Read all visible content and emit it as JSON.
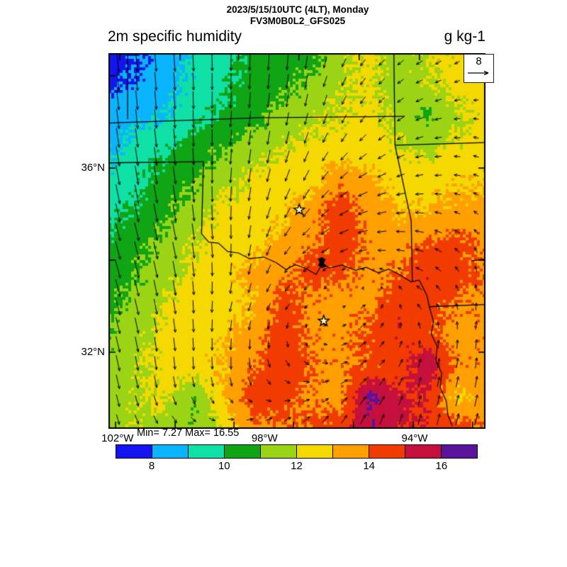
{
  "header": {
    "datetime_line": "2023/5/15/10UTC (4LT), Monday",
    "model_line": "FV3M0B0L2_GFS025",
    "field_title": "2m specific humidity",
    "units": "g kg-1"
  },
  "stats": {
    "min_max_label": "Min= 7.27 Max= 16.55",
    "min": 7.27,
    "max": 16.55
  },
  "reference_vector": {
    "label": "8",
    "value": 8
  },
  "axes": {
    "lat_labels": [
      {
        "text": "36°N",
        "ny": 0.306
      },
      {
        "text": "32°N",
        "ny": 0.796
      }
    ],
    "lon_labels": [
      {
        "text": "102°W",
        "nx": 0.024
      },
      {
        "text": "98°W",
        "nx": 0.414
      },
      {
        "text": "94°W",
        "nx": 0.812
      }
    ],
    "bottom_ticks_nx": [
      0.019,
      0.177,
      0.333,
      0.491,
      0.65,
      0.808,
      0.966
    ],
    "top_ticks_nx": [
      0.03,
      0.19,
      0.345,
      0.505,
      0.665,
      0.825,
      0.98
    ],
    "side_ticks_ny": [
      0.06,
      0.306,
      0.551,
      0.796
    ]
  },
  "colorbar": {
    "levels": [
      7,
      8,
      9,
      10,
      11,
      12,
      13,
      14,
      15,
      16,
      17
    ],
    "tick_labels": [
      "8",
      "10",
      "12",
      "14",
      "16"
    ],
    "colors": [
      "#1414f0",
      "#0ab4ff",
      "#0fe0a5",
      "#0fa514",
      "#9bd414",
      "#f5d800",
      "#ff9f00",
      "#f23b00",
      "#c50f3c",
      "#5a149b"
    ]
  },
  "chart_data": {
    "type": "heatmap",
    "title": "2m specific humidity",
    "units": "g kg-1",
    "time": "2023/5/15/10UTC (4LT), Monday",
    "model": "FV3M0B0L2_GFS025",
    "value_range_shown": [
      7,
      17
    ],
    "min": 7.27,
    "max": 16.55,
    "grid": {
      "note": "specific humidity g/kg on normalized map coords, 13 rows (top to bottom) x 14 cols (west to east)",
      "values": [
        [
          7.6,
          7.8,
          8.5,
          9.2,
          9.6,
          10.3,
          10.6,
          10.6,
          11.6,
          12.2,
          11.6,
          12.0,
          12.3,
          12.2
        ],
        [
          7.7,
          8.2,
          8.6,
          9.3,
          9.8,
          10.4,
          10.7,
          11.2,
          11.9,
          12.2,
          11.5,
          11.9,
          12.4,
          12.3
        ],
        [
          8.4,
          8.7,
          9.0,
          9.6,
          10.2,
          10.6,
          11.3,
          11.8,
          12.1,
          12.3,
          11.7,
          10.9,
          11.9,
          12.4
        ],
        [
          8.8,
          9.4,
          9.9,
          10.5,
          10.9,
          11.5,
          12.0,
          12.3,
          12.4,
          12.4,
          12.0,
          11.6,
          12.2,
          12.5
        ],
        [
          9.2,
          9.8,
          10.4,
          11.0,
          11.6,
          12.2,
          12.5,
          12.6,
          13.6,
          13.2,
          12.6,
          12.5,
          12.8,
          12.9
        ],
        [
          9.6,
          10.2,
          10.8,
          11.5,
          12.3,
          12.5,
          12.7,
          13.6,
          14.6,
          13.6,
          12.9,
          13.0,
          13.3,
          13.4
        ],
        [
          10.2,
          10.7,
          11.3,
          12.0,
          12.5,
          12.6,
          13.4,
          13.8,
          14.6,
          13.8,
          13.5,
          14.0,
          14.3,
          13.8
        ],
        [
          10.4,
          10.9,
          11.6,
          12.3,
          12.6,
          13.3,
          13.7,
          14.3,
          14.2,
          13.7,
          13.9,
          14.8,
          14.4,
          13.9
        ],
        [
          10.8,
          11.4,
          12.1,
          12.5,
          12.6,
          13.0,
          14.4,
          13.8,
          13.6,
          13.7,
          14.6,
          14.4,
          13.9,
          13.7
        ],
        [
          11.0,
          11.7,
          12.3,
          12.5,
          12.8,
          13.5,
          14.6,
          13.8,
          13.7,
          14.2,
          14.9,
          14.3,
          13.6,
          13.8
        ],
        [
          11.3,
          11.9,
          12.4,
          12.6,
          13.1,
          13.9,
          14.7,
          14.0,
          13.7,
          14.2,
          14.4,
          15.9,
          13.8,
          13.7
        ],
        [
          11.5,
          11.9,
          12.2,
          10.9,
          13.0,
          14.6,
          14.4,
          13.8,
          13.6,
          16.1,
          15.3,
          14.8,
          12.7,
          13.6
        ],
        [
          11.6,
          11.9,
          11.5,
          11.2,
          12.2,
          13.6,
          14.0,
          14.2,
          14.4,
          15.9,
          15.2,
          14.9,
          14.6,
          13.9
        ]
      ]
    },
    "wind": {
      "note": "10m wind vectors, 7x7 coarse grid, u east+ / v north+, reference arrow = 8",
      "u": [
        [
          0.8,
          0.5,
          0,
          -0.5,
          -2,
          -2.5,
          -1.5
        ],
        [
          1,
          0.5,
          -0.5,
          -1,
          -2,
          -3,
          -2
        ],
        [
          1.5,
          1,
          -0.5,
          -2,
          -3.5,
          -3,
          -2
        ],
        [
          2,
          1.5,
          0,
          -3,
          -4,
          -3.5,
          -1
        ],
        [
          2,
          1,
          -1,
          -2,
          2,
          -2,
          0.5
        ],
        [
          1.5,
          0.5,
          0,
          2,
          3,
          1,
          0.5
        ],
        [
          1,
          2,
          3,
          3,
          2,
          1,
          1.5
        ]
      ],
      "v": [
        [
          -7.5,
          -7,
          -6.5,
          -6,
          -2.5,
          -1.5,
          -1
        ],
        [
          -8,
          -7.5,
          -6.5,
          -5,
          -3,
          -1,
          0.5
        ],
        [
          -8,
          -7,
          -6,
          -4.5,
          -2,
          -0.5,
          1
        ],
        [
          -7.5,
          -7,
          -5.5,
          -3,
          -1,
          1,
          2
        ],
        [
          -7,
          -6,
          -4,
          -2,
          1.5,
          2,
          3
        ],
        [
          -6.5,
          -5,
          -5,
          -2,
          2,
          3.5,
          4.5
        ],
        [
          -4,
          -2.5,
          1,
          2.5,
          4,
          4.5,
          5
        ]
      ]
    },
    "overlays": {
      "borders": [
        {
          "name": "co-ks-102w",
          "pts": [
            [
              0.051,
              0.0
            ],
            [
              0.051,
              0.176
            ]
          ]
        },
        {
          "name": "ok-ks-37n",
          "pts": [
            [
              0.0,
              0.186
            ],
            [
              0.4,
              0.172
            ],
            [
              0.786,
              0.168
            ]
          ]
        },
        {
          "name": "ks-mo",
          "pts": [
            [
              0.757,
              0.0
            ],
            [
              0.76,
              0.245
            ]
          ]
        },
        {
          "name": "mo-ar-36p5n",
          "pts": [
            [
              0.76,
              0.245
            ],
            [
              1.0,
              0.238
            ]
          ]
        },
        {
          "name": "ok-ar",
          "pts": [
            [
              0.76,
              0.245
            ],
            [
              0.803,
              0.447
            ],
            [
              0.806,
              0.609
            ]
          ]
        },
        {
          "name": "ok-panhandle-south",
          "pts": [
            [
              0.0,
              0.292
            ],
            [
              0.252,
              0.289
            ]
          ]
        },
        {
          "name": "tx-ok-100w",
          "pts": [
            [
              0.252,
              0.289
            ],
            [
              0.247,
              0.481
            ]
          ]
        },
        {
          "name": "tx-ar",
          "pts": [
            [
              0.831,
              0.617
            ],
            [
              0.845,
              0.646
            ],
            [
              0.851,
              0.675
            ]
          ]
        },
        {
          "name": "ar-la-33n",
          "pts": [
            [
              0.851,
              0.675
            ],
            [
              1.0,
              0.669
            ]
          ]
        }
      ],
      "rivers": [
        {
          "name": "red-river",
          "pts": [
            [
              0.247,
              0.481
            ],
            [
              0.266,
              0.503
            ],
            [
              0.292,
              0.506
            ],
            [
              0.316,
              0.528
            ],
            [
              0.345,
              0.532
            ],
            [
              0.374,
              0.547
            ],
            [
              0.412,
              0.543
            ],
            [
              0.444,
              0.557
            ],
            [
              0.471,
              0.576
            ],
            [
              0.496,
              0.563
            ],
            [
              0.523,
              0.573
            ],
            [
              0.551,
              0.589
            ],
            [
              0.568,
              0.559
            ],
            [
              0.586,
              0.572
            ],
            [
              0.619,
              0.564
            ],
            [
              0.655,
              0.578
            ],
            [
              0.684,
              0.57
            ],
            [
              0.716,
              0.585
            ],
            [
              0.743,
              0.575
            ],
            [
              0.771,
              0.589
            ],
            [
              0.803,
              0.609
            ],
            [
              0.824,
              0.604
            ],
            [
              0.831,
              0.617
            ]
          ]
        },
        {
          "name": "red-river-arkansas",
          "pts": [
            [
              0.962,
              0.553
            ],
            [
              1.0,
              0.548
            ]
          ]
        },
        {
          "name": "sabine-tx-la",
          "pts": [
            [
              0.851,
              0.675
            ],
            [
              0.862,
              0.714
            ],
            [
              0.856,
              0.747
            ],
            [
              0.872,
              0.781
            ],
            [
              0.868,
              0.818
            ],
            [
              0.884,
              0.852
            ],
            [
              0.88,
              0.891
            ],
            [
              0.896,
              0.926
            ],
            [
              0.9,
              0.962
            ],
            [
              0.912,
              0.993
            ]
          ]
        }
      ],
      "lake": [
        [
          0.555,
          0.548
        ],
        [
          0.566,
          0.543
        ],
        [
          0.576,
          0.549
        ],
        [
          0.571,
          0.56
        ],
        [
          0.578,
          0.568
        ],
        [
          0.566,
          0.572
        ],
        [
          0.556,
          0.565
        ],
        [
          0.56,
          0.556
        ]
      ],
      "stars": [
        {
          "x": 0.506,
          "y": 0.417
        },
        {
          "x": 0.571,
          "y": 0.713
        }
      ]
    }
  }
}
